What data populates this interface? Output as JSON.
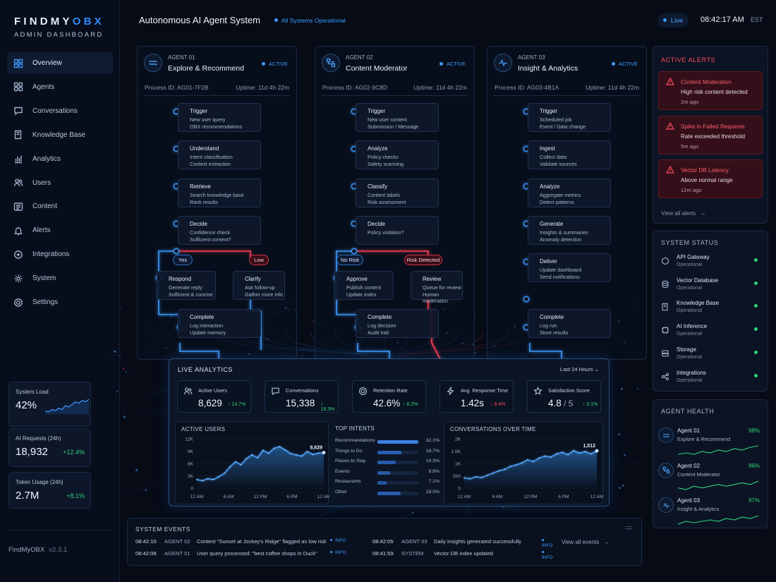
{
  "brand": {
    "logo_a": "FINDMY",
    "logo_b": "OBX",
    "subtitle": "ADMIN DASHBOARD",
    "footer_name": "FindMyOBX",
    "footer_version": "v2.3.1"
  },
  "nav": [
    {
      "label": "Overview",
      "icon": "grid-icon",
      "active": true
    },
    {
      "label": "Agents",
      "icon": "agents-icon"
    },
    {
      "label": "Conversations",
      "icon": "chat-icon"
    },
    {
      "label": "Knowledge Base",
      "icon": "book-icon"
    },
    {
      "label": "Analytics",
      "icon": "bar-chart-icon"
    },
    {
      "label": "Users",
      "icon": "users-icon"
    },
    {
      "label": "Content",
      "icon": "content-icon"
    },
    {
      "label": "Alerts",
      "icon": "bell-icon"
    },
    {
      "label": "Integrations",
      "icon": "puzzle-icon"
    },
    {
      "label": "System",
      "icon": "gear-icon"
    },
    {
      "label": "Settings",
      "icon": "settings-icon"
    }
  ],
  "side_metrics": [
    {
      "label": "System Load",
      "value": "42%",
      "sparkline": [
        4,
        3,
        5,
        4,
        6,
        5,
        8,
        7,
        9,
        11,
        10,
        12,
        11,
        13
      ]
    },
    {
      "label": "AI Requests (24h)",
      "value": "18,932",
      "delta": "+12.4%"
    },
    {
      "label": "Token Usage (24h)",
      "value": "2.7M",
      "delta": "+8.1%"
    }
  ],
  "header": {
    "title": "Autonomous AI Agent System",
    "status": "All Systems Operational",
    "live": "Live",
    "time": "08:42:17 AM",
    "tz": "EST"
  },
  "agents": [
    {
      "id": "AGENT 01",
      "name": "Explore & Recommend",
      "status": "ACTIVE",
      "process": "Process ID: AG01-7F2B",
      "uptime": "Uptime: 11d 4h 22m",
      "steps": [
        {
          "t": "Trigger",
          "a": "New user query",
          "b": "OBX recommendations"
        },
        {
          "t": "Understand",
          "a": "Intent classification",
          "b": "Context extraction"
        },
        {
          "t": "Retrieve",
          "a": "Search knowledge base",
          "b": "Rank results"
        },
        {
          "t": "Decide",
          "a": "Confidence check",
          "b": "Sufficient context?"
        },
        {
          "t": "Respond",
          "a": "Generate reply",
          "b": "Sufficient & concise"
        },
        {
          "t": "Clarify",
          "a": "Ask follow-up",
          "b": "Gather more info"
        },
        {
          "t": "Complete",
          "a": "Log interaction",
          "b": "Update memory"
        }
      ],
      "left_pill": "Yes",
      "right_pill": "Low"
    },
    {
      "id": "AGENT 02",
      "name": "Content Moderator",
      "status": "ACTIVE",
      "process": "Process ID: AG02-9C8D",
      "uptime": "Uptime: 11d 4h 22m",
      "steps": [
        {
          "t": "Trigger",
          "a": "New user content",
          "b": "Submission / Message"
        },
        {
          "t": "Analyze",
          "a": "Policy checks",
          "b": "Safety scanning"
        },
        {
          "t": "Classify",
          "a": "Content labels",
          "b": "Risk assessment"
        },
        {
          "t": "Decide",
          "a": "Policy violation?",
          "b": ""
        },
        {
          "t": "Approve",
          "a": "Publish content",
          "b": "Update index"
        },
        {
          "t": "Review",
          "a": "Queue for review",
          "b": "Human moderation"
        },
        {
          "t": "Complete",
          "a": "Log decision",
          "b": "Audit trail"
        }
      ],
      "left_pill": "No Risk",
      "right_pill": "Risk Detected"
    },
    {
      "id": "AGENT 03",
      "name": "Insight & Analytics",
      "status": "ACTIVE",
      "process": "Process ID: AG03-4B1A",
      "uptime": "Uptime: 11d 4h 22m",
      "steps": [
        {
          "t": "Trigger",
          "a": "Scheduled job",
          "b": "Event / Data change"
        },
        {
          "t": "Ingest",
          "a": "Collect data",
          "b": "Validate sources"
        },
        {
          "t": "Analyze",
          "a": "Aggregate metrics",
          "b": "Detect patterns"
        },
        {
          "t": "Generate",
          "a": "Insights & summaries",
          "b": "Anomaly detection"
        },
        {
          "t": "Deliver",
          "a": "Update dashboard",
          "b": "Send notifications"
        },
        {
          "t": "Complete",
          "a": "Log run",
          "b": "Store results"
        }
      ]
    }
  ],
  "alerts": {
    "title": "ACTIVE ALERTS",
    "items": [
      {
        "title": "Content Moderation",
        "desc": "High risk content detected",
        "ago": "2m ago"
      },
      {
        "title": "Spike in Failed Requests",
        "desc": "Rate exceeded threshold",
        "ago": "5m ago"
      },
      {
        "title": "Vector DB Latency",
        "desc": "Above normal range",
        "ago": "12m ago"
      }
    ],
    "view_all": "View all alerts"
  },
  "system_status": {
    "title": "SYSTEM STATUS",
    "items": [
      {
        "name": "API Gateway",
        "status": "Operational",
        "icon": "gateway-icon"
      },
      {
        "name": "Vector Database",
        "status": "Operational",
        "icon": "database-icon"
      },
      {
        "name": "Knowledge Base",
        "status": "Operational",
        "icon": "book-icon"
      },
      {
        "name": "AI Inference",
        "status": "Operational",
        "icon": "chip-icon"
      },
      {
        "name": "Storage",
        "status": "Operational",
        "icon": "storage-icon"
      },
      {
        "name": "Integrations",
        "status": "Operational",
        "icon": "integrations-icon"
      }
    ]
  },
  "agent_health": {
    "title": "AGENT HEALTH",
    "items": [
      {
        "name": "Agent 01",
        "desc": "Explore & Recommend",
        "pct": "98%",
        "spark": [
          3,
          4,
          3,
          5,
          4,
          6,
          5,
          7,
          6,
          8,
          9
        ]
      },
      {
        "name": "Agent 02",
        "desc": "Content Moderator",
        "pct": "96%",
        "spark": [
          4,
          3,
          5,
          4,
          5,
          6,
          5,
          6,
          7,
          6,
          8
        ]
      },
      {
        "name": "Agent 03",
        "desc": "Insight & Analytics",
        "pct": "97%",
        "spark": [
          3,
          5,
          4,
          5,
          6,
          5,
          7,
          6,
          8,
          7,
          9
        ]
      }
    ]
  },
  "live": {
    "title": "LIVE ANALYTICS",
    "range": "Last 24 Hours",
    "kpis": [
      {
        "label": "Active Users",
        "value": "8,629",
        "delta": "↑ 14.7%",
        "up": true,
        "icon": "users-icon"
      },
      {
        "label": "Conversations",
        "value": "15,338",
        "delta": "↑ 18.3%",
        "up": true,
        "icon": "chat-icon"
      },
      {
        "label": "Retention Rate",
        "value": "42.6%",
        "delta": "↑ 6.2%",
        "up": true,
        "icon": "target-icon"
      },
      {
        "label": "Avg. Response Time",
        "value": "1.42s",
        "delta": "↓ 8.4%",
        "up": false,
        "icon": "bolt-icon"
      },
      {
        "label": "Satisfaction Score",
        "value": "4.8",
        "value_suffix": "/ 5",
        "delta": "↑ 3.1%",
        "up": true,
        "icon": "star-icon"
      }
    ]
  },
  "chart_data": [
    {
      "type": "line",
      "title": "ACTIVE USERS",
      "x_ticks": [
        "12 AM",
        "6 AM",
        "12 PM",
        "6 PM",
        "12 AM"
      ],
      "y_ticks": [
        "12K",
        "9K",
        "6K",
        "3K",
        "0"
      ],
      "ylim": [
        0,
        12000
      ],
      "series": [
        {
          "values": [
            2100,
            1800,
            2300,
            2100,
            2800,
            3600,
            5200,
            6400,
            5700,
            7200,
            8100,
            7400,
            9200,
            8500,
            9700,
            10100,
            9300,
            8400,
            8100,
            7800,
            8900,
            8200,
            8500,
            8629
          ]
        }
      ],
      "last_label": "8,629"
    },
    {
      "type": "bar",
      "title": "TOP INTENTS",
      "categories": [
        "Recommendations",
        "Things to Do",
        "Places to Stay",
        "Events",
        "Restaurants",
        "Other"
      ],
      "values": [
        32.1,
        18.7,
        14.3,
        9.8,
        7.1,
        18.0
      ],
      "labels": [
        "32.1%",
        "18.7%",
        "14.3%",
        "9.8%",
        "7.1%",
        "18.0%"
      ]
    },
    {
      "type": "line",
      "title": "CONVERSATIONS OVER TIME",
      "x_ticks": [
        "12 AM",
        "6 AM",
        "12 PM",
        "6 PM",
        "12 AM"
      ],
      "y_ticks": [
        "2K",
        "1.5K",
        "1K",
        "500",
        "0"
      ],
      "ylim": [
        0,
        2000
      ],
      "series": [
        {
          "values": [
            420,
            380,
            460,
            430,
            520,
            610,
            700,
            760,
            880,
            940,
            1020,
            1150,
            1080,
            1220,
            1300,
            1260,
            1390,
            1450,
            1360,
            1520,
            1420,
            1480,
            1390,
            1512
          ]
        }
      ],
      "last_label": "1,512"
    }
  ],
  "events": {
    "title": "SYSTEM EVENTS",
    "items": [
      {
        "time": "08:42:10",
        "agent": "AGENT 02",
        "msg": "Content \"Sunset at Jockey's Ridge\" flagged as low risk",
        "level": "INFO"
      },
      {
        "time": "08:42:08",
        "agent": "AGENT 01",
        "msg": "User query processed: \"best coffee shops in Duck\"",
        "level": "INFO"
      },
      {
        "time": "08:42:05",
        "agent": "AGENT 03",
        "msg": "Daily insights generated successfully",
        "level": "INFO"
      },
      {
        "time": "08:41:59",
        "agent": "SYSTEM",
        "msg": "Vector DB index updated",
        "level": "INFO"
      }
    ],
    "view_all": "View all events"
  },
  "colors": {
    "accent": "#3d9bff",
    "danger": "#ff3d55",
    "ok": "#2ed47a",
    "bg": "#060b16"
  }
}
